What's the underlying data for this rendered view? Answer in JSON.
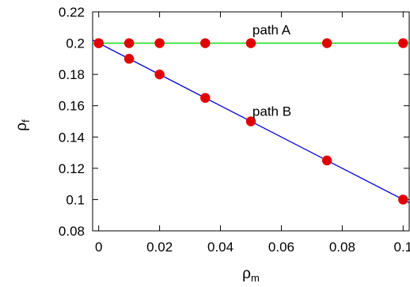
{
  "chart_data": {
    "type": "scatter",
    "xlabel": "ρ",
    "xlabel_sub": "m",
    "ylabel": "ρ",
    "ylabel_sub": "f",
    "xlim": [
      -0.002,
      0.102
    ],
    "ylim": [
      0.08,
      0.22
    ],
    "xticks": [
      0,
      0.02,
      0.04,
      0.06,
      0.08,
      0.1
    ],
    "xtick_labels": [
      "0",
      "0.02",
      "0.04",
      "0.06",
      "0.08",
      "0.1"
    ],
    "yticks": [
      0.08,
      0.1,
      0.12,
      0.14,
      0.16,
      0.18,
      0.2,
      0.22
    ],
    "ytick_labels": [
      "0.08",
      "0.1",
      "0.12",
      "0.14",
      "0.16",
      "0.18",
      "0.2",
      "0.22"
    ],
    "grid": false,
    "series": [
      {
        "label": "path A",
        "line_color": "#00dd00",
        "marker_color": "#e00000",
        "line": {
          "slope": 0,
          "intercept": 0.2
        },
        "x": [
          0,
          0.01,
          0.02,
          0.035,
          0.05,
          0.075,
          0.1
        ],
        "y": [
          0.2,
          0.2,
          0.2,
          0.2,
          0.2,
          0.2,
          0.2
        ]
      },
      {
        "label": "path B",
        "line_color": "#0000cc",
        "marker_color": "#e00000",
        "line": {
          "slope": -1.0,
          "intercept": 0.2
        },
        "x": [
          0,
          0.01,
          0.02,
          0.035,
          0.05,
          0.075,
          0.1
        ],
        "y": [
          0.2,
          0.19,
          0.18,
          0.165,
          0.15,
          0.125,
          0.1
        ]
      }
    ],
    "annotations": [
      {
        "text": "path A",
        "x": 0.0505,
        "y": 0.2055
      },
      {
        "text": "path B",
        "x": 0.0505,
        "y": 0.1535
      }
    ]
  }
}
